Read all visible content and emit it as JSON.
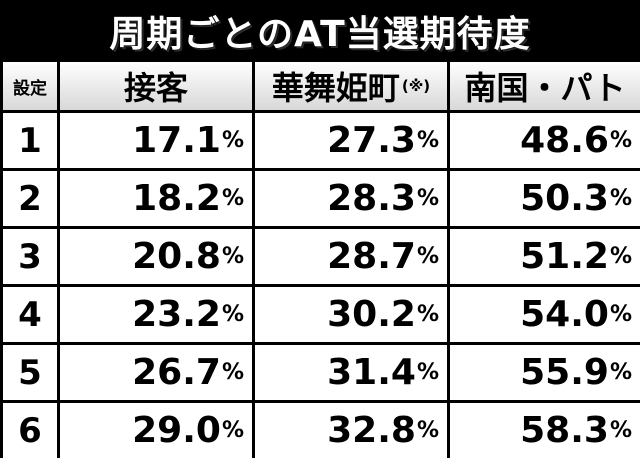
{
  "header": {
    "title": "周期ごとのAT当選期待度"
  },
  "table": {
    "columns": [
      "設定",
      "接客",
      "華舞姫町",
      "南国・パト"
    ],
    "column_note": "(※)",
    "rows": [
      [
        "1",
        "17.1%",
        "27.3%",
        "48.6%"
      ],
      [
        "2",
        "18.2%",
        "28.3%",
        "50.3%"
      ],
      [
        "3",
        "20.8%",
        "28.7%",
        "51.2%"
      ],
      [
        "4",
        "23.2%",
        "30.2%",
        "54.0%"
      ],
      [
        "5",
        "26.7%",
        "31.4%",
        "55.9%"
      ],
      [
        "6",
        "29.0%",
        "32.8%",
        "58.3%"
      ]
    ]
  }
}
